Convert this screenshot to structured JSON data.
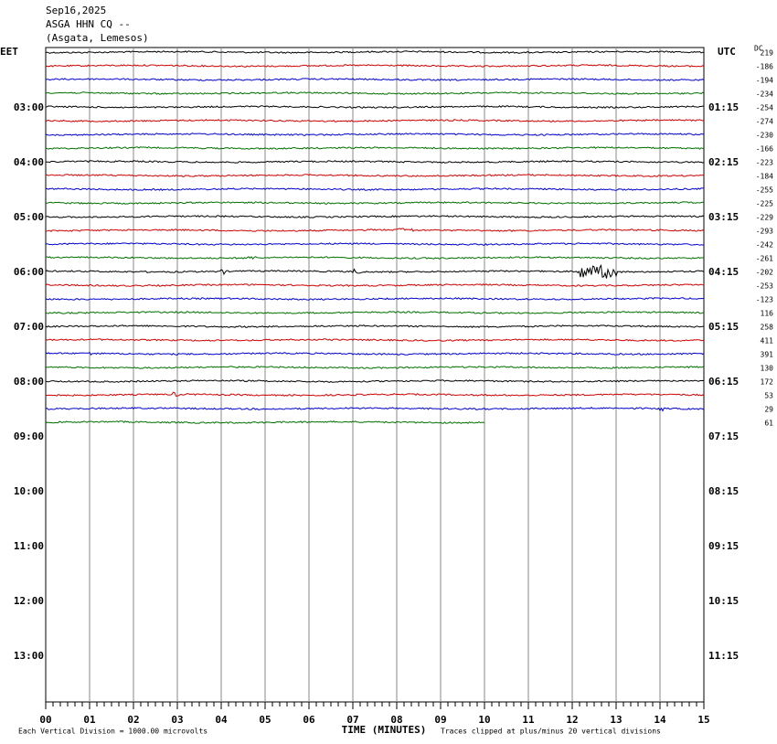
{
  "header": {
    "date": "Sep16,2025",
    "station": "ASGA HHN CQ --",
    "location": "(Asgata, Lemesos)"
  },
  "left_label": "EET",
  "right_label": "UTC",
  "dc_label": "DC",
  "eet_hours": [
    "03:00",
    "04:00",
    "05:00",
    "06:00",
    "07:00",
    "08:00",
    "09:00",
    "10:00",
    "11:00",
    "12:00",
    "13:00"
  ],
  "utc_hours": [
    "01:15",
    "02:15",
    "03:15",
    "04:15",
    "05:15",
    "06:15",
    "07:15",
    "08:15",
    "09:15",
    "10:15",
    "11:15"
  ],
  "dc_offsets": [
    219,
    -186,
    -194,
    -234,
    -254,
    -274,
    -230,
    -166,
    -223,
    -184,
    -255,
    -225,
    -229,
    -293,
    -242,
    -261,
    -202,
    -253,
    -123,
    116,
    258,
    411,
    391,
    130,
    172,
    53,
    29,
    61
  ],
  "trace_colors": [
    "#000000",
    "#d00000",
    "#0000d0",
    "#007000"
  ],
  "last_trace_end_minute": 10,
  "minute_labels": [
    "00",
    "01",
    "02",
    "03",
    "04",
    "05",
    "06",
    "07",
    "08",
    "09",
    "10",
    "11",
    "12",
    "13",
    "14",
    "15"
  ],
  "x_axis_label": "TIME (MINUTES)",
  "footer_left": "Each Vertical Division = 1000.00 microvolts",
  "footer_right": "Traces clipped at plus/minus 20 vertical divisions"
}
